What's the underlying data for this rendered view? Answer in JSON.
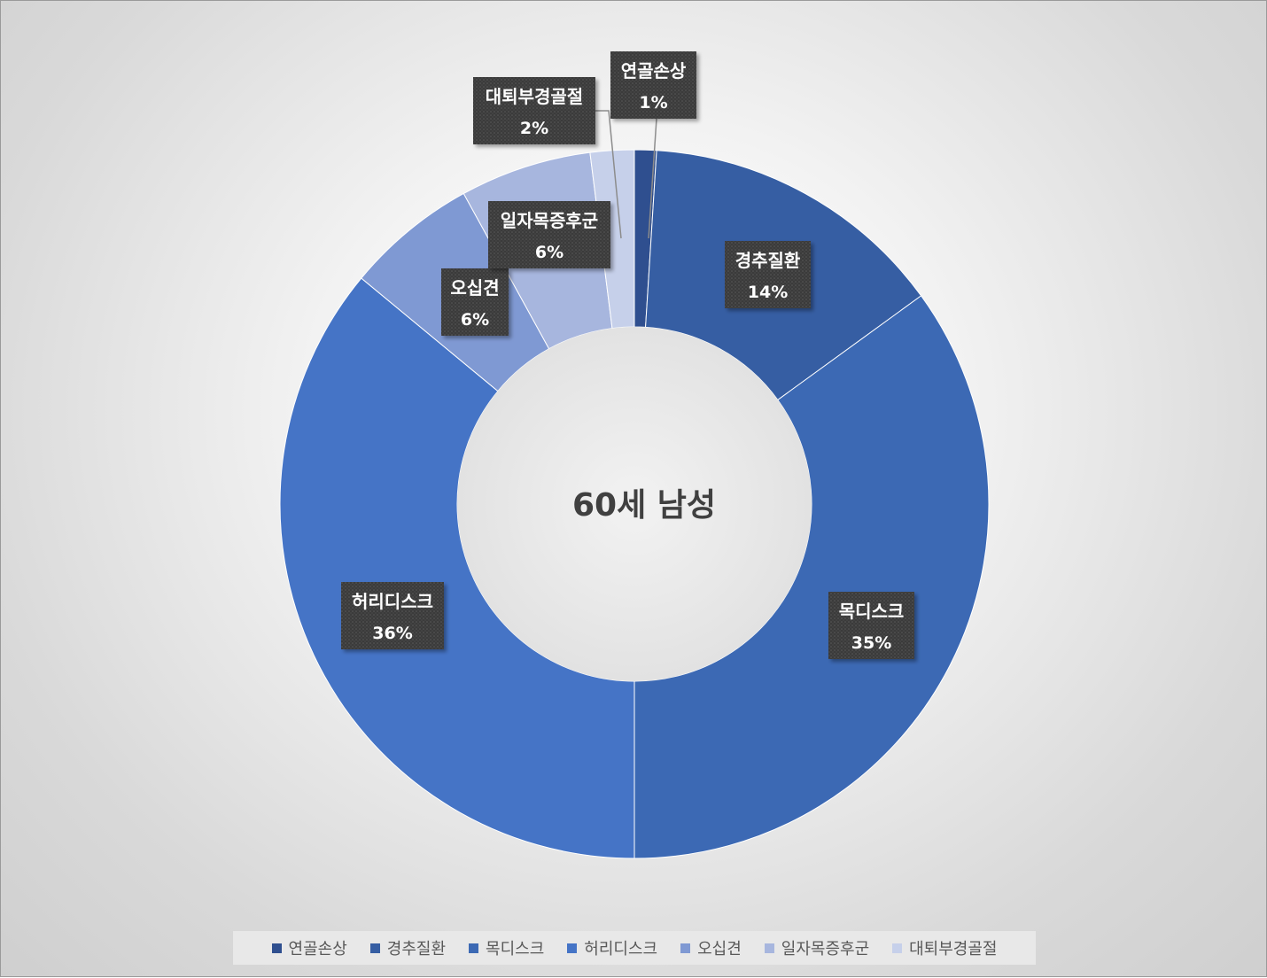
{
  "chart_data": {
    "type": "pie",
    "variant": "donut",
    "title": "60세 남성",
    "categories": [
      "연골손상",
      "경추질환",
      "목디스크",
      "허리디스크",
      "오십견",
      "일자목증후군",
      "대퇴부경골절"
    ],
    "values": [
      1,
      14,
      35,
      36,
      6,
      6,
      2
    ],
    "value_labels": [
      "1%",
      "14%",
      "35%",
      "36%",
      "6%",
      "6%",
      "2%"
    ],
    "colors": [
      "#2f4f8f",
      "#365ea3",
      "#3c69b4",
      "#4574c6",
      "#7f99d3",
      "#a7b6de",
      "#c6d0ea"
    ],
    "legend_position": "bottom"
  }
}
